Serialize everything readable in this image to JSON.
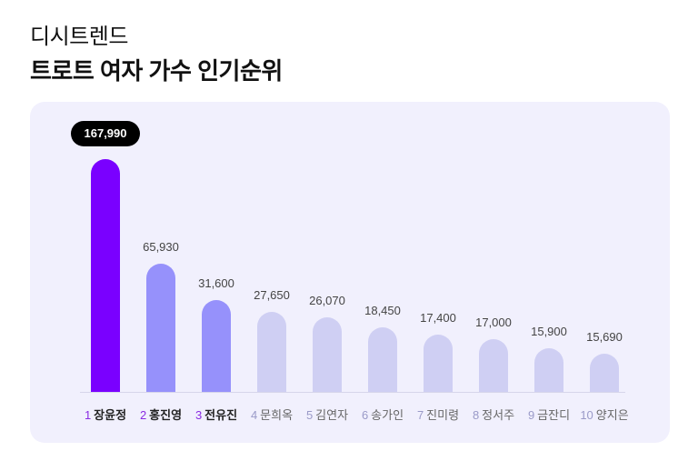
{
  "header": {
    "brand": "디시트렌드",
    "title": "트로트 여자 가수 인기순위"
  },
  "chart_data": {
    "type": "bar",
    "title": "트로트 여자 가수 인기순위",
    "categories": [
      "장윤정",
      "홍진영",
      "전유진",
      "문희옥",
      "김연자",
      "송가인",
      "진미령",
      "정서주",
      "금잔디",
      "양지은"
    ],
    "values": [
      167990,
      65930,
      31600,
      27650,
      26070,
      18450,
      17400,
      17000,
      15900,
      15690
    ],
    "value_labels": [
      "167,990",
      "65,930",
      "31,600",
      "27,650",
      "26,070",
      "18,450",
      "17,400",
      "17,000",
      "15,900",
      "15,690"
    ],
    "ranks": [
      "1",
      "2",
      "3",
      "4",
      "5",
      "6",
      "7",
      "8",
      "9",
      "10"
    ],
    "xlabel": "",
    "ylabel": "",
    "grid": false,
    "legend": "none"
  },
  "colors": {
    "top1": "#7a00ff",
    "top23": "#9691fb",
    "rest": "#cfcff3",
    "rank_highlight": "#8a2be2",
    "rank_rest": "#9a9ac8",
    "badge_bg": "#000000",
    "card_bg": "#f1f0fd"
  }
}
